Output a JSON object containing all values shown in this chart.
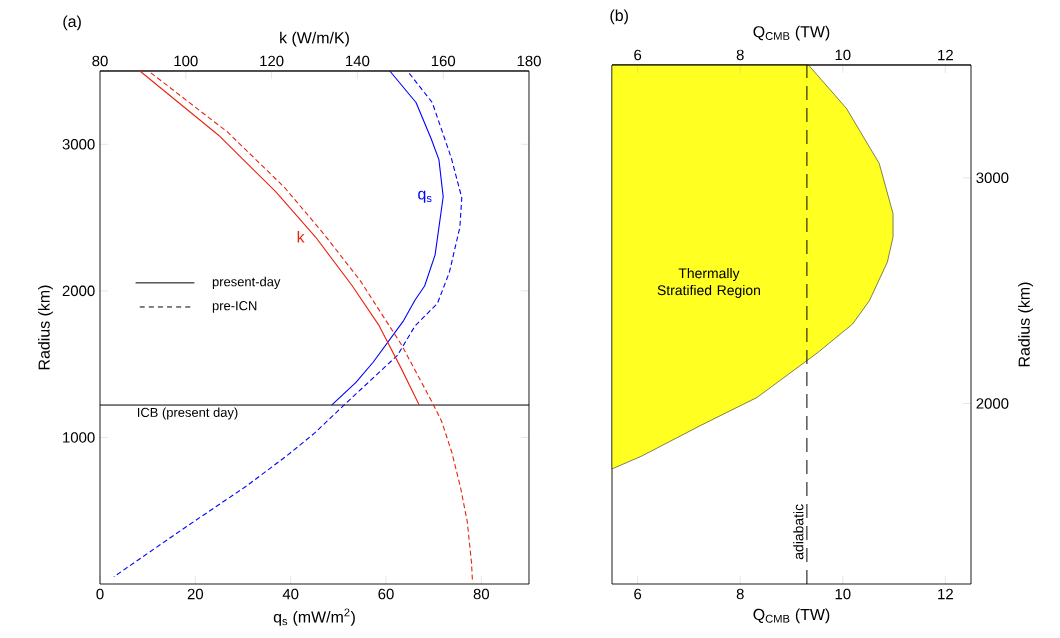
{
  "chart_data": [
    {
      "type": "line",
      "title": "(a)",
      "xlabel": "q$_{s}$ (mW/m$^{2}$)",
      "x2label": "k (W/m/K)",
      "ylabel": "Radius (km)",
      "xlim": [
        0,
        90
      ],
      "xticks": [
        0,
        20,
        40,
        60,
        80
      ],
      "x2lim": [
        80,
        180
      ],
      "x2ticks": [
        80,
        100,
        120,
        140,
        160,
        180
      ],
      "ylim": [
        0,
        3500
      ],
      "yticks": [
        1000,
        2000,
        3000
      ],
      "series": [
        {
          "name": "k",
          "color": "#e8230f",
          "axis": "x2",
          "x": [
            89.3,
            107.7,
            121.0,
            130.2,
            138.7,
            145.1,
            150.3,
            154.4
          ],
          "values": [
            3500,
            3060,
            2675,
            2369,
            2038,
            1761,
            1466,
            1221
          ]
        },
        {
          "color": "#e8230f",
          "axis": "x2",
          "line_style": "dashed",
          "x": [
            91.3,
            109.7,
            123.0,
            132.2,
            140.7,
            150.3,
            157.6,
            159.6,
            162.0,
            164.0,
            165.6,
            166.6,
            166.8
          ],
          "values": [
            3500,
            3084,
            2706,
            2387,
            2068,
            1631,
            1230,
            1112,
            899,
            663,
            427,
            144,
            30
          ]
        },
        {
          "name": "q$_{s}$",
          "color": "#0000ff",
          "x": [
            60.8,
            66.3,
            69.5,
            71.1,
            72.0,
            70.3,
            68.1,
            66.1,
            63.7,
            57.3,
            53.7,
            48.6
          ],
          "values": [
            3500,
            3285,
            3036,
            2895,
            2642,
            2245,
            2033,
            1938,
            1797,
            1513,
            1376,
            1221
          ]
        },
        {
          "color": "#0000ff",
          "line_style": "dashed",
          "x": [
            64.5,
            69.7,
            73.7,
            75.9,
            75.5,
            73.3,
            70.8,
            66.1,
            62.4,
            51.5,
            45.0,
            39.2,
            30.5,
            18.1,
            2.9
          ],
          "values": [
            3500,
            3285,
            2907,
            2635,
            2434,
            2127,
            1915,
            1761,
            1560,
            1230,
            1029,
            875,
            663,
            391,
            49
          ]
        }
      ],
      "ref_lines": [
        {
          "axis": "y",
          "value": 1221,
          "label": "ICB (present day)",
          "color": "#000000"
        }
      ],
      "annotations": [
        "present-day",
        "pre-ICN"
      ]
    },
    {
      "type": "area",
      "orientation": "horizontal",
      "title": "(b)",
      "xlabel": "Q$_{CMB}$ (TW)",
      "x2label": "Q$_{CMB}$ (TW)",
      "ylabel": "Radius (km)",
      "xlim": [
        5.5,
        12.5
      ],
      "xticks": [
        6,
        8,
        10,
        12
      ],
      "x2lim": [
        5.5,
        12.5
      ],
      "x2ticks": [
        6,
        8,
        10,
        12
      ],
      "ylim": [
        1200,
        3500
      ],
      "yticks": [
        2000,
        3000
      ],
      "series": [
        {
          "color": "#ffff22",
          "x": [
            3500,
            3308,
            3064,
            2841,
            2738,
            2627,
            2456,
            2352,
            2227,
            2027,
            1904,
            1767,
            1710
          ],
          "values": [
            9.33,
            10.07,
            10.71,
            10.98,
            10.98,
            10.87,
            10.52,
            10.19,
            9.52,
            8.33,
            7.24,
            6.08,
            5.5
          ]
        }
      ],
      "ref_lines": [
        {
          "axis": "x",
          "value": 9.3,
          "label": "adiabatic",
          "color": "#000000",
          "line_style": "dashed"
        }
      ],
      "annotations": [
        "Thermally Stratified Region"
      ]
    }
  ]
}
